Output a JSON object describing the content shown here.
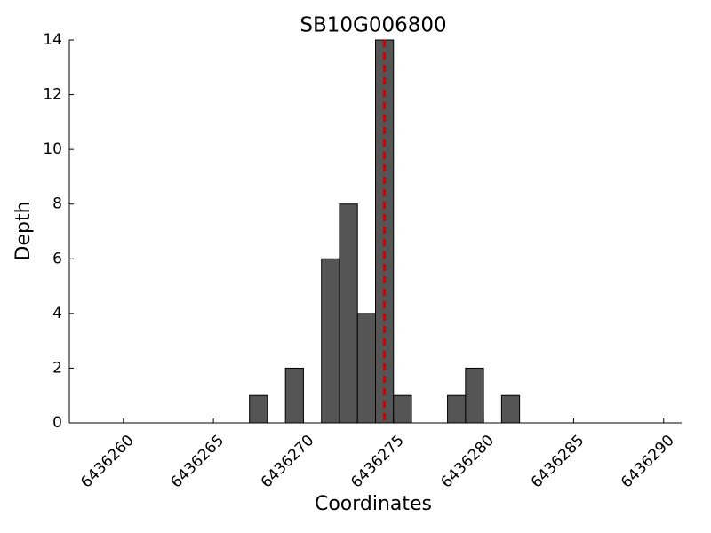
{
  "chart_data": {
    "type": "histogram",
    "title": "SB10G006800",
    "x_label": "Coordinates",
    "y_label": "Depth",
    "bins": [
      6436267,
      6436268,
      6436269,
      6436270,
      6436271,
      6436272,
      6436273,
      6436274,
      6436275,
      6436276,
      6436277,
      6436278,
      6436279,
      6436280,
      6436281,
      6436282
    ],
    "counts": [
      1,
      0,
      2,
      0,
      6,
      8,
      4,
      14,
      1,
      0,
      0,
      1,
      2,
      0,
      1
    ],
    "color": "#555555",
    "edge_color": "#000000",
    "xlim": [
      6436257,
      6436291
    ],
    "xticks": [
      6436260,
      6436265,
      6436270,
      6436275,
      6436280,
      6436285,
      6436290
    ],
    "ylim": [
      0,
      14
    ],
    "yticks": [
      0,
      2,
      4,
      6,
      8,
      10,
      12,
      14
    ],
    "vline": {
      "x": 6436274.5,
      "color": "#cc0000"
    }
  }
}
